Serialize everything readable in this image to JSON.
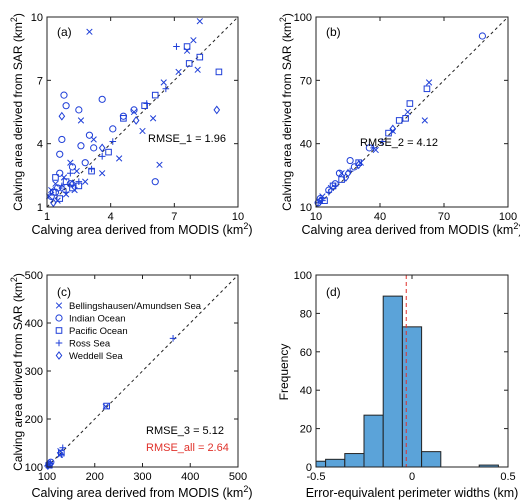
{
  "marker_color": "#1f3fd8",
  "diag_color": "#222222",
  "bar_fill": "#5ba3d9",
  "bar_stroke": "#222222",
  "ref_line_color": "#e0312a",
  "chart_data": [
    {
      "id": "a",
      "type": "scatter",
      "panel_label": "(a)",
      "xlabel": "Calving area derived from MODIS (km²)",
      "ylabel": "Calving area derived from SAR (km²)",
      "xlim": [
        1,
        10
      ],
      "ylim": [
        1,
        10
      ],
      "xticks": [
        1,
        4,
        7,
        10
      ],
      "yticks": [
        1,
        4,
        7,
        10
      ],
      "identity_line": true,
      "annotations": [
        {
          "text": "RMSE_1 = 1.96",
          "color": "#000000"
        }
      ],
      "series": [
        {
          "marker": "x",
          "points": [
            [
              3.0,
              9.3
            ],
            [
              8.2,
              9.8
            ],
            [
              6.5,
              6.9
            ],
            [
              7.6,
              8.4
            ],
            [
              7.9,
              8.9
            ],
            [
              2.6,
              5.1
            ],
            [
              3.2,
              4.2
            ],
            [
              6.3,
              3.0
            ],
            [
              1.8,
              2.4
            ],
            [
              2.3,
              1.8
            ],
            [
              1.4,
              2.1
            ],
            [
              5.5,
              4.6
            ],
            [
              2.1,
              3.1
            ],
            [
              4.4,
              3.3
            ],
            [
              1.2,
              1.8
            ],
            [
              8.1,
              7.5
            ],
            [
              1.5,
              1.3
            ],
            [
              3.6,
              2.6
            ],
            [
              1.9,
              1.6
            ],
            [
              2.8,
              2.2
            ],
            [
              5.1,
              5.5
            ],
            [
              7.2,
              7.4
            ],
            [
              1.1,
              1.5
            ],
            [
              2.4,
              2.7
            ],
            [
              6.0,
              5.2
            ]
          ]
        },
        {
          "marker": "o",
          "points": [
            [
              1.8,
              6.3
            ],
            [
              3.6,
              6.1
            ],
            [
              2.5,
              5.6
            ],
            [
              1.6,
              3.5
            ],
            [
              5.1,
              5.6
            ],
            [
              6.1,
              2.2
            ],
            [
              2.2,
              2.9
            ],
            [
              1.7,
              4.2
            ],
            [
              2.6,
              3.9
            ],
            [
              4.1,
              4.7
            ],
            [
              3.2,
              3.8
            ],
            [
              1.2,
              1.5
            ],
            [
              1.5,
              1.9
            ],
            [
              2.1,
              2.1
            ],
            [
              3.0,
              4.4
            ],
            [
              1.9,
              5.8
            ],
            [
              4.6,
              5.3
            ],
            [
              1.4,
              1.7
            ],
            [
              2.8,
              3.1
            ],
            [
              1.6,
              2.6
            ]
          ]
        },
        {
          "marker": "s",
          "points": [
            [
              7.7,
              7.8
            ],
            [
              9.1,
              7.4
            ],
            [
              8.2,
              8.1
            ],
            [
              7.6,
              8.6
            ],
            [
              6.1,
              6.3
            ],
            [
              3.9,
              3.6
            ],
            [
              2.2,
              1.9
            ],
            [
              1.6,
              1.4
            ],
            [
              1.3,
              1.7
            ],
            [
              2.5,
              2.0
            ],
            [
              3.1,
              2.7
            ],
            [
              4.6,
              5.2
            ],
            [
              1.9,
              2.2
            ],
            [
              5.6,
              5.8
            ],
            [
              1.4,
              2.4
            ]
          ]
        },
        {
          "marker": "+",
          "points": [
            [
              7.1,
              8.6
            ],
            [
              5.7,
              5.9
            ],
            [
              3.1,
              2.8
            ],
            [
              2.1,
              2.6
            ],
            [
              3.6,
              3.4
            ],
            [
              2.5,
              2.2
            ],
            [
              1.9,
              1.7
            ],
            [
              4.1,
              4.1
            ],
            [
              6.6,
              6.6
            ],
            [
              1.7,
              2.0
            ]
          ]
        },
        {
          "marker": "d",
          "points": [
            [
              9.0,
              5.6
            ],
            [
              1.7,
              5.3
            ],
            [
              5.2,
              5.1
            ],
            [
              2.2,
              2.1
            ],
            [
              1.3,
              1.2
            ],
            [
              1.7,
              1.9
            ],
            [
              3.6,
              3.8
            ]
          ]
        }
      ]
    },
    {
      "id": "b",
      "type": "scatter",
      "panel_label": "(b)",
      "xlabel": "Calving area derived from MODIS (km²)",
      "ylabel": "Calving area derived from SAR (km²)",
      "xlim": [
        10,
        100
      ],
      "ylim": [
        10,
        100
      ],
      "xticks": [
        10,
        40,
        70,
        100
      ],
      "yticks": [
        10,
        40,
        70,
        100
      ],
      "identity_line": true,
      "annotations": [
        {
          "text": "RMSE_2 = 4.12",
          "color": "#000000"
        }
      ],
      "series": [
        {
          "marker": "x",
          "points": [
            [
              61,
              51
            ],
            [
              63,
              69
            ],
            [
              38,
              37
            ],
            [
              22,
              26
            ],
            [
              13,
              15
            ],
            [
              46,
              46
            ],
            [
              17,
              19
            ],
            [
              53,
              55
            ],
            [
              31,
              31
            ]
          ]
        },
        {
          "marker": "o",
          "points": [
            [
              88,
              91
            ],
            [
              26,
              32
            ],
            [
              19,
              21
            ],
            [
              12,
              14
            ],
            [
              16,
              18
            ],
            [
              35,
              38
            ],
            [
              11,
              12
            ],
            [
              21,
              26
            ],
            [
              28,
              29
            ]
          ]
        },
        {
          "marker": "s",
          "points": [
            [
              62,
              66
            ],
            [
              54,
              59
            ],
            [
              49,
              51
            ],
            [
              14,
              13
            ],
            [
              30,
              31
            ],
            [
              22,
              23
            ],
            [
              18,
              20
            ],
            [
              52,
              52
            ],
            [
              44,
              45
            ]
          ]
        },
        {
          "marker": "+",
          "points": [
            [
              41,
              41
            ],
            [
              16,
              17
            ],
            [
              26,
              27
            ],
            [
              37,
              38
            ],
            [
              13,
              13
            ],
            [
              11,
              12
            ],
            [
              19,
              20
            ]
          ]
        },
        {
          "marker": "d",
          "points": [
            [
              46,
              47
            ],
            [
              30,
              30
            ],
            [
              12,
              13
            ],
            [
              25,
              26
            ],
            [
              24,
              24
            ]
          ]
        }
      ]
    },
    {
      "id": "c",
      "type": "scatter",
      "panel_label": "(c)",
      "xlabel": "Calving area derived from MODIS (km²)",
      "ylabel": "Calving area derived from SAR (km²)",
      "xlim": [
        100,
        500
      ],
      "ylim": [
        100,
        500
      ],
      "xticks": [
        100,
        200,
        300,
        400,
        500
      ],
      "yticks": [
        100,
        200,
        300,
        400,
        500
      ],
      "identity_line": true,
      "legend": "top-left",
      "annotations": [
        {
          "text": "RMSE_3 = 5.12",
          "color": "#000000"
        },
        {
          "text": "RMSE_all = 2.64",
          "color": "#e0312a"
        }
      ],
      "series": [
        {
          "name": "Bellingshausen/Amundsen Sea",
          "marker": "x",
          "points": [
            [
              103,
              104
            ],
            [
              128,
              133
            ],
            [
              223,
              226
            ],
            [
              104,
              103
            ],
            [
              127,
              125
            ]
          ]
        },
        {
          "name": "Indian Ocean",
          "marker": "o",
          "points": [
            [
              104,
              106
            ],
            [
              108,
              110
            ]
          ]
        },
        {
          "name": "Pacific Ocean",
          "marker": "s",
          "points": [
            [
              225,
              227
            ],
            [
              105,
              104
            ],
            [
              130,
              129
            ]
          ]
        },
        {
          "name": "Ross Sea",
          "marker": "+",
          "points": [
            [
              364,
              368
            ],
            [
              101,
              102
            ],
            [
              133,
              140
            ],
            [
              130,
              126
            ]
          ]
        },
        {
          "name": "Weddell Sea",
          "marker": "d",
          "points": [
            [
              102,
              103
            ],
            [
              107,
              106
            ]
          ]
        }
      ]
    },
    {
      "id": "d",
      "type": "bar",
      "panel_label": "(d)",
      "xlabel": "Error-equivalent perimeter widths (km)",
      "ylabel": "Frequency",
      "xlim": [
        -0.5,
        0.5
      ],
      "ylim": [
        0,
        100
      ],
      "xticks": [
        -0.5,
        0,
        0.5
      ],
      "xtick_labels": [
        "-0.5",
        "0",
        "0.5"
      ],
      "yticks": [
        0,
        20,
        40,
        60,
        80,
        100
      ],
      "bin_width": 0.1,
      "bins_left": [
        -0.55,
        -0.45,
        -0.35,
        -0.25,
        -0.15,
        -0.05,
        0.05,
        0.15,
        0.25,
        0.35,
        0.45
      ],
      "values": [
        3,
        4,
        7,
        27,
        89,
        73,
        8,
        0,
        0,
        1,
        0
      ],
      "reference_line": {
        "x": -0.03,
        "style": "dashed"
      }
    }
  ]
}
